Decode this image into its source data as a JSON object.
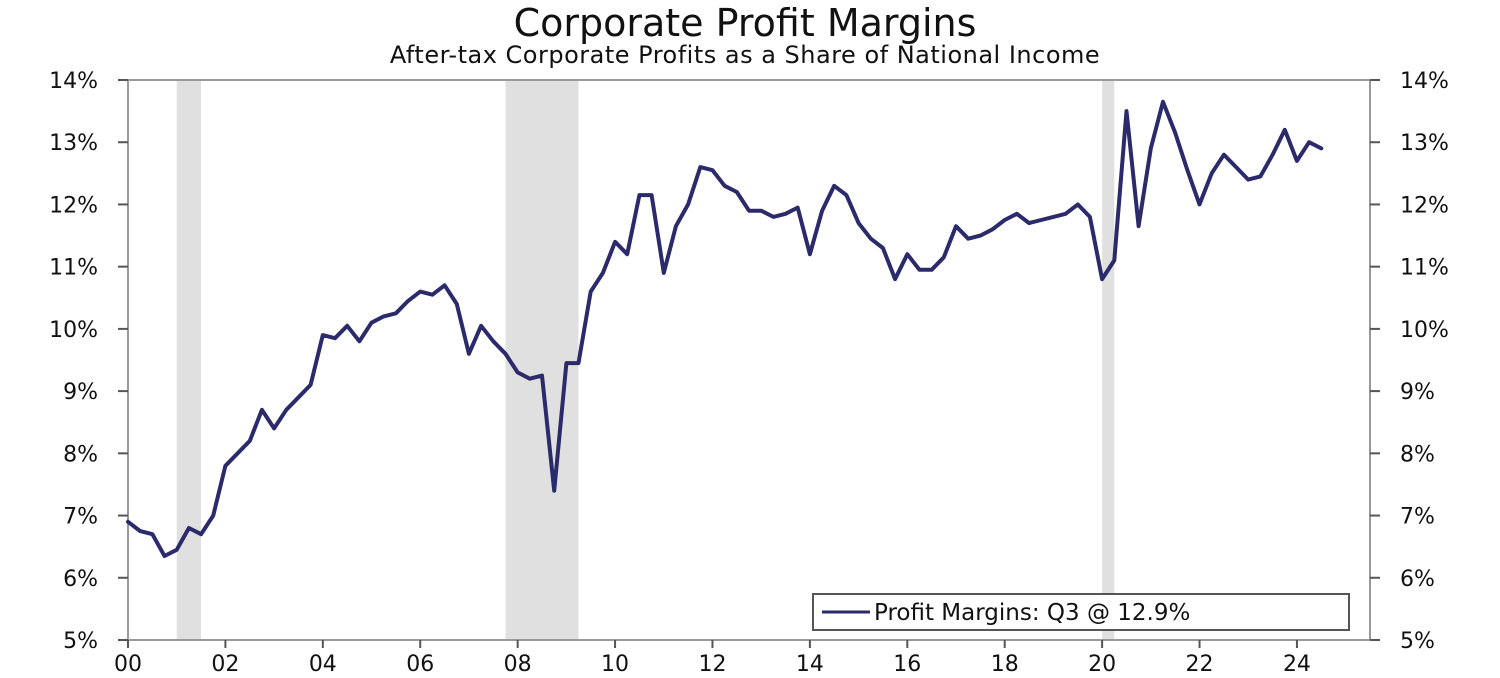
{
  "chart_data": {
    "type": "line",
    "title": "Corporate Profit Margins",
    "subtitle": "After-tax Corporate Profits as a Share of National Income",
    "xlabel": "",
    "ylabel": "",
    "ylim": [
      5,
      14
    ],
    "xlim": [
      2000,
      2025.5
    ],
    "yticks": [
      5,
      6,
      7,
      8,
      9,
      10,
      11,
      12,
      13,
      14
    ],
    "ytick_labels": [
      "5%",
      "6%",
      "7%",
      "8%",
      "9%",
      "10%",
      "11%",
      "12%",
      "13%",
      "14%"
    ],
    "xticks": [
      2000,
      2002,
      2004,
      2006,
      2008,
      2010,
      2012,
      2014,
      2016,
      2018,
      2020,
      2022,
      2024
    ],
    "xtick_labels": [
      "00",
      "02",
      "04",
      "06",
      "08",
      "10",
      "12",
      "14",
      "16",
      "18",
      "20",
      "22",
      "24"
    ],
    "grid": false,
    "recessions": [
      [
        2001.0,
        2001.5
      ],
      [
        2007.75,
        2009.25
      ],
      [
        2020.0,
        2020.25
      ]
    ],
    "line_color": "#2b2a6b",
    "recession_color": "#e0e0e0",
    "legend_location": "bottom-right",
    "series": [
      {
        "name": "Profit Margins: Q3 @ 12.9%",
        "x": [
          2000.0,
          2000.25,
          2000.5,
          2000.75,
          2001.0,
          2001.25,
          2001.5,
          2001.75,
          2002.0,
          2002.25,
          2002.5,
          2002.75,
          2003.0,
          2003.25,
          2003.5,
          2003.75,
          2004.0,
          2004.25,
          2004.5,
          2004.75,
          2005.0,
          2005.25,
          2005.5,
          2005.75,
          2006.0,
          2006.25,
          2006.5,
          2006.75,
          2007.0,
          2007.25,
          2007.5,
          2007.75,
          2008.0,
          2008.25,
          2008.5,
          2008.75,
          2009.0,
          2009.25,
          2009.5,
          2009.75,
          2010.0,
          2010.25,
          2010.5,
          2010.75,
          2011.0,
          2011.25,
          2011.5,
          2011.75,
          2012.0,
          2012.25,
          2012.5,
          2012.75,
          2013.0,
          2013.25,
          2013.5,
          2013.75,
          2014.0,
          2014.25,
          2014.5,
          2014.75,
          2015.0,
          2015.25,
          2015.5,
          2015.75,
          2016.0,
          2016.25,
          2016.5,
          2016.75,
          2017.0,
          2017.25,
          2017.5,
          2017.75,
          2018.0,
          2018.25,
          2018.5,
          2018.75,
          2019.0,
          2019.25,
          2019.5,
          2019.75,
          2020.0,
          2020.25,
          2020.5,
          2020.75,
          2021.0,
          2021.25,
          2021.5,
          2021.75,
          2022.0,
          2022.25,
          2022.5,
          2022.75,
          2023.0,
          2023.25,
          2023.5,
          2023.75,
          2024.0,
          2024.25,
          2024.5
        ],
        "values": [
          6.9,
          6.75,
          6.7,
          6.35,
          6.45,
          6.8,
          6.7,
          7.0,
          7.8,
          8.0,
          8.2,
          8.7,
          8.4,
          8.7,
          8.9,
          9.1,
          9.9,
          9.85,
          10.05,
          9.8,
          10.1,
          10.2,
          10.25,
          10.45,
          10.6,
          10.55,
          10.7,
          10.4,
          9.6,
          10.05,
          9.8,
          9.6,
          9.3,
          9.2,
          9.25,
          7.4,
          9.45,
          9.45,
          10.6,
          10.9,
          11.4,
          11.2,
          12.15,
          12.15,
          10.9,
          11.65,
          12.0,
          12.6,
          12.55,
          12.3,
          12.2,
          11.9,
          11.9,
          11.8,
          11.85,
          11.95,
          11.2,
          11.9,
          12.3,
          12.15,
          11.7,
          11.45,
          11.3,
          10.8,
          11.2,
          10.95,
          10.95,
          11.15,
          11.65,
          11.45,
          11.5,
          11.6,
          11.75,
          11.85,
          11.7,
          11.75,
          11.8,
          11.85,
          12.0,
          11.8,
          10.8,
          11.1,
          13.5,
          11.65,
          12.9,
          13.65,
          13.15,
          12.55,
          12.0,
          12.5,
          12.8,
          12.6,
          12.4,
          12.45,
          12.8,
          13.2,
          12.7,
          13.0,
          12.9
        ]
      }
    ]
  }
}
